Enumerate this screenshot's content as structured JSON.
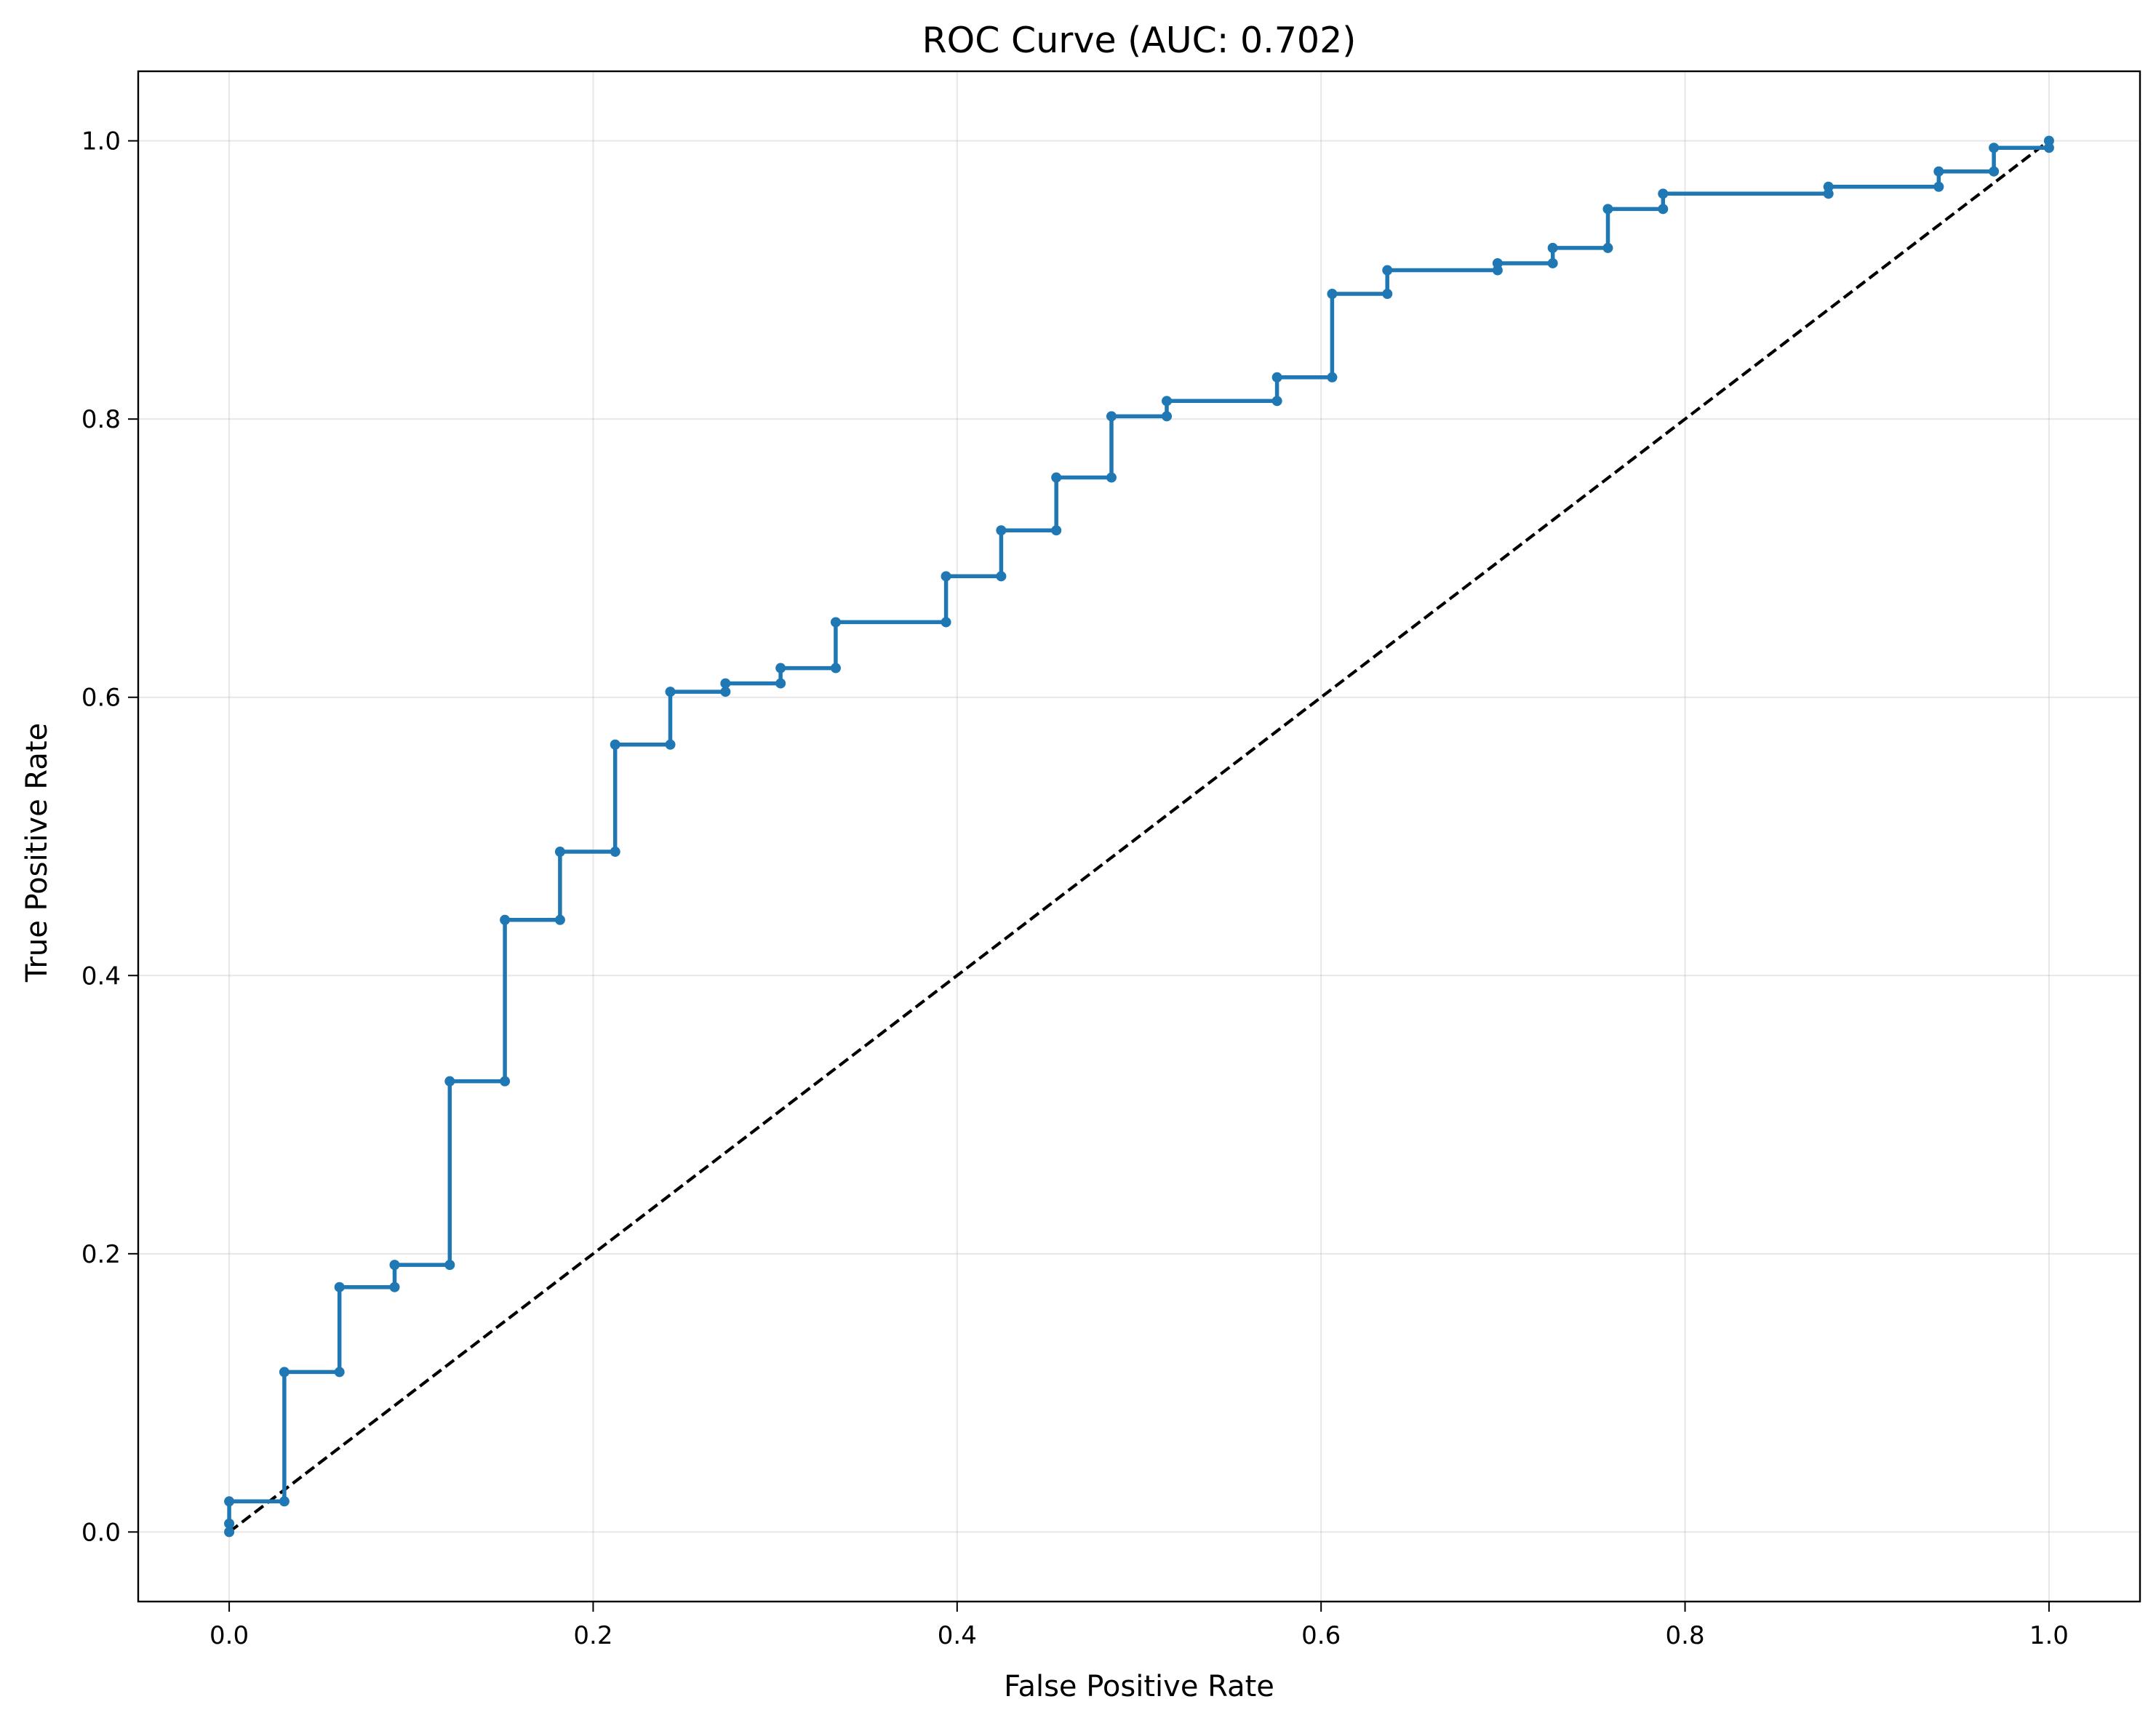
{
  "chart_data": {
    "type": "line",
    "title": "ROC Curve (AUC: 0.702)",
    "xlabel": "False Positive Rate",
    "ylabel": "True Positive Rate",
    "xlim": [
      -0.05,
      1.05
    ],
    "ylim": [
      -0.05,
      1.05
    ],
    "xticks": [
      "0.0",
      "0.2",
      "0.4",
      "0.6",
      "0.8",
      "1.0"
    ],
    "yticks": [
      "0.0",
      "0.2",
      "0.4",
      "0.6",
      "0.8",
      "1.0"
    ],
    "grid": true,
    "legend": "none",
    "series": [
      {
        "color": "#1f77b4",
        "style": "solid-with-markers",
        "x": [
          0.0,
          0.0,
          0.0,
          0.0303,
          0.0303,
          0.0606,
          0.0606,
          0.0909,
          0.0909,
          0.1212,
          0.1212,
          0.1515,
          0.1515,
          0.1818,
          0.1818,
          0.2121,
          0.2121,
          0.2424,
          0.2424,
          0.2727,
          0.2727,
          0.303,
          0.303,
          0.3333,
          0.3333,
          0.3939,
          0.3939,
          0.4242,
          0.4242,
          0.4545,
          0.4545,
          0.4848,
          0.4848,
          0.5152,
          0.5152,
          0.5758,
          0.5758,
          0.6061,
          0.6061,
          0.6364,
          0.6364,
          0.697,
          0.697,
          0.7273,
          0.7273,
          0.7576,
          0.7576,
          0.7879,
          0.7879,
          0.8788,
          0.8788,
          0.9394,
          0.9394,
          0.9697,
          0.9697,
          1.0,
          1.0
        ],
        "y": [
          0.0,
          0.006,
          0.022,
          0.022,
          0.115,
          0.115,
          0.176,
          0.176,
          0.192,
          0.192,
          0.324,
          0.324,
          0.44,
          0.44,
          0.489,
          0.489,
          0.566,
          0.566,
          0.604,
          0.604,
          0.61,
          0.61,
          0.621,
          0.621,
          0.654,
          0.654,
          0.687,
          0.687,
          0.72,
          0.72,
          0.758,
          0.758,
          0.802,
          0.802,
          0.813,
          0.813,
          0.83,
          0.83,
          0.89,
          0.89,
          0.907,
          0.907,
          0.912,
          0.912,
          0.923,
          0.923,
          0.951,
          0.951,
          0.962,
          0.962,
          0.967,
          0.967,
          0.978,
          0.978,
          0.995,
          0.995,
          1.0
        ]
      },
      {
        "color": "#000000",
        "style": "dashed",
        "x": [
          0.0,
          1.0
        ],
        "y": [
          0.0,
          1.0
        ]
      }
    ]
  }
}
